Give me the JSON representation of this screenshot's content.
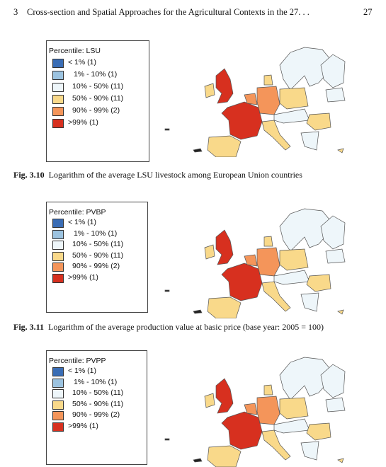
{
  "header": {
    "chapter": "3",
    "title": "Cross-section and Spatial Approaches for the Agricultural Contexts in the 27. . .",
    "page": "27"
  },
  "figures": [
    {
      "legend_title": "Percentile: LSU",
      "legend": [
        {
          "label": "< 1% (1)",
          "color": "#3a6db5"
        },
        {
          "label": "1% - 10% (1)",
          "color": "#9cc3e0"
        },
        {
          "label": "10% - 50% (11)",
          "color": "#eef6fa"
        },
        {
          "label": "50% - 90% (11)",
          "color": "#f9d98a"
        },
        {
          "label": "90% - 99% (2)",
          "color": "#f4955a"
        },
        {
          "label": ">99% (1)",
          "color": "#d7301f"
        }
      ],
      "caption_label": "Fig. 3.10",
      "caption": "Logarithm of the average LSU livestock among European Union countries"
    },
    {
      "legend_title": "Percentile: PVBP",
      "legend": [
        {
          "label": "< 1% (1)",
          "color": "#3a6db5"
        },
        {
          "label": "1% - 10% (1)",
          "color": "#9cc3e0"
        },
        {
          "label": "10% - 50% (11)",
          "color": "#eef6fa"
        },
        {
          "label": "50% - 90% (11)",
          "color": "#f9d98a"
        },
        {
          "label": "90% - 99% (2)",
          "color": "#f4955a"
        },
        {
          "label": ">99% (1)",
          "color": "#d7301f"
        }
      ],
      "caption_label": "Fig. 3.11",
      "caption": "Logarithm of the average production value at basic price (base year: 2005 = 100)"
    },
    {
      "legend_title": "Percentile: PVPP",
      "legend": [
        {
          "label": "< 1% (1)",
          "color": "#3a6db5"
        },
        {
          "label": "1% - 10% (1)",
          "color": "#9cc3e0"
        },
        {
          "label": "10% - 50% (11)",
          "color": "#eef6fa"
        },
        {
          "label": "50% - 90% (11)",
          "color": "#f9d98a"
        },
        {
          "label": "90% - 99% (2)",
          "color": "#f4955a"
        },
        {
          "label": ">99% (1)",
          "color": "#d7301f"
        }
      ]
    }
  ]
}
